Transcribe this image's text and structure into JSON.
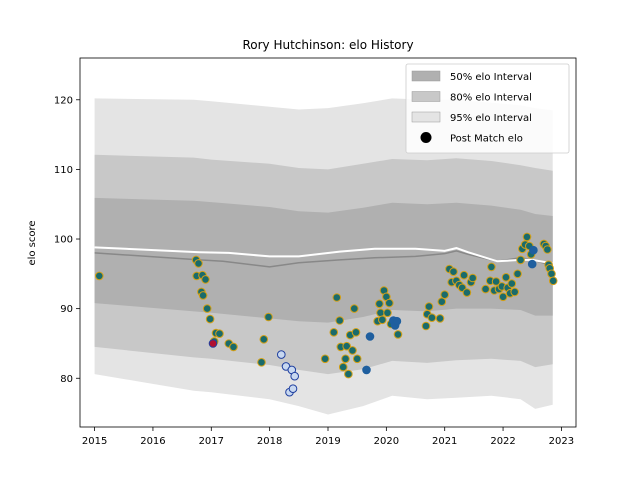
{
  "chart_data": {
    "type": "scatter",
    "title": "Rory Hutchinson: elo History",
    "xlabel": "",
    "ylabel": "elo score",
    "xlim": [
      2014.75,
      2023.25
    ],
    "ylim": [
      73,
      126
    ],
    "x_ticks": [
      2015,
      2016,
      2017,
      2018,
      2019,
      2020,
      2021,
      2022,
      2023
    ],
    "y_ticks": [
      80,
      90,
      100,
      110,
      120
    ],
    "grid": false,
    "legend_position": "top-right",
    "legend": [
      {
        "label": "50% elo Interval",
        "kind": "band",
        "color": "#b0b0b0"
      },
      {
        "label": "80% elo Interval",
        "kind": "band",
        "color": "#c8c8c8"
      },
      {
        "label": "95% elo Interval",
        "kind": "band",
        "color": "#e4e4e4"
      },
      {
        "label": "Post Match elo",
        "kind": "marker",
        "color": "#000000"
      }
    ],
    "colors": {
      "band_50": "#b0b0b0",
      "band_80": "#c8c8c8",
      "band_95": "#e4e4e4",
      "median_line": "#888888",
      "mean_line": "#ffffff",
      "win_fill": "#1a6b6b",
      "win_edge": "#d4a017",
      "loss_fill": "#1f5f9f",
      "loss_edge": "#1f5f9f",
      "open_fill": "#c8d8f0",
      "open_edge": "#1f3f9f",
      "red_fill": "#b01030",
      "red_edge": "#1f3f9f"
    },
    "intervals": [
      {
        "x": 2015.0,
        "lo95": 80.6,
        "lo80": 84.5,
        "lo50": 90.8,
        "hi50": 105.9,
        "hi80": 112.1,
        "hi95": 120.2
      },
      {
        "x": 2016.7,
        "lo95": 78.2,
        "lo80": 83.0,
        "lo50": 89.6,
        "hi50": 105.5,
        "hi80": 111.7,
        "hi95": 120.0
      },
      {
        "x": 2017.0,
        "lo95": 78.0,
        "lo80": 82.8,
        "lo50": 89.4,
        "hi50": 105.3,
        "hi80": 111.4,
        "hi95": 119.8
      },
      {
        "x": 2018.0,
        "lo95": 77.0,
        "lo80": 81.9,
        "lo50": 88.6,
        "hi50": 104.6,
        "hi80": 110.8,
        "hi95": 119.0
      },
      {
        "x": 2018.5,
        "lo95": 76.0,
        "lo80": 81.2,
        "lo50": 88.2,
        "hi50": 104.0,
        "hi80": 110.2,
        "hi95": 118.6
      },
      {
        "x": 2019.0,
        "lo95": 74.8,
        "lo80": 80.6,
        "lo50": 88.0,
        "hi50": 103.8,
        "hi80": 110.0,
        "hi95": 118.8
      },
      {
        "x": 2019.6,
        "lo95": 76.0,
        "lo80": 81.3,
        "lo50": 88.8,
        "hi50": 104.5,
        "hi80": 110.8,
        "hi95": 119.5
      },
      {
        "x": 2020.1,
        "lo95": 77.5,
        "lo80": 82.5,
        "lo50": 89.8,
        "hi50": 105.2,
        "hi80": 111.5,
        "hi95": 120.2
      },
      {
        "x": 2020.7,
        "lo95": 77.0,
        "lo80": 82.2,
        "lo50": 89.6,
        "hi50": 105.0,
        "hi80": 111.3,
        "hi95": 120.0
      },
      {
        "x": 2021.2,
        "lo95": 77.2,
        "lo80": 82.6,
        "lo50": 90.0,
        "hi50": 105.2,
        "hi80": 111.6,
        "hi95": 120.0
      },
      {
        "x": 2021.8,
        "lo95": 77.5,
        "lo80": 82.8,
        "lo50": 90.0,
        "hi50": 104.8,
        "hi80": 111.2,
        "hi95": 119.6
      },
      {
        "x": 2022.3,
        "lo95": 77.0,
        "lo80": 82.5,
        "lo50": 89.8,
        "hi50": 104.2,
        "hi80": 110.6,
        "hi95": 119.2
      },
      {
        "x": 2022.55,
        "lo95": 75.6,
        "lo80": 81.6,
        "lo50": 89.0,
        "hi50": 103.6,
        "hi80": 110.2,
        "hi95": 118.8
      },
      {
        "x": 2022.85,
        "lo95": 76.2,
        "lo80": 82.0,
        "lo50": 89.0,
        "hi50": 103.3,
        "hi80": 109.8,
        "hi95": 118.5
      }
    ],
    "median_line": [
      {
        "x": 2015.0,
        "y": 98.0
      },
      {
        "x": 2016.8,
        "y": 97.0
      },
      {
        "x": 2017.2,
        "y": 96.8
      },
      {
        "x": 2018.0,
        "y": 96.0
      },
      {
        "x": 2018.5,
        "y": 96.6
      },
      {
        "x": 2019.2,
        "y": 97.0
      },
      {
        "x": 2019.8,
        "y": 97.3
      },
      {
        "x": 2020.5,
        "y": 97.5
      },
      {
        "x": 2021.0,
        "y": 97.9
      },
      {
        "x": 2021.2,
        "y": 98.3
      },
      {
        "x": 2021.4,
        "y": 97.8
      },
      {
        "x": 2021.9,
        "y": 96.8
      },
      {
        "x": 2022.3,
        "y": 97.3
      },
      {
        "x": 2022.5,
        "y": 97.0
      },
      {
        "x": 2022.85,
        "y": 96.2
      }
    ],
    "mean_line": [
      {
        "x": 2015.0,
        "y": 98.8
      },
      {
        "x": 2016.8,
        "y": 98.1
      },
      {
        "x": 2017.3,
        "y": 98.0
      },
      {
        "x": 2018.0,
        "y": 97.5
      },
      {
        "x": 2018.5,
        "y": 97.5
      },
      {
        "x": 2019.2,
        "y": 98.2
      },
      {
        "x": 2019.8,
        "y": 98.6
      },
      {
        "x": 2020.5,
        "y": 98.6
      },
      {
        "x": 2021.0,
        "y": 98.3
      },
      {
        "x": 2021.2,
        "y": 98.7
      },
      {
        "x": 2021.4,
        "y": 98.1
      },
      {
        "x": 2021.9,
        "y": 96.8
      },
      {
        "x": 2022.3,
        "y": 97.0
      },
      {
        "x": 2022.5,
        "y": 97.0
      },
      {
        "x": 2022.85,
        "y": 96.5
      }
    ],
    "series": [
      {
        "name": "Post Match elo",
        "points": [
          {
            "x": 2015.08,
            "y": 94.7,
            "style": "win"
          },
          {
            "x": 2016.74,
            "y": 97.0,
            "style": "win"
          },
          {
            "x": 2016.78,
            "y": 96.5,
            "style": "win"
          },
          {
            "x": 2016.75,
            "y": 94.7,
            "style": "win"
          },
          {
            "x": 2016.85,
            "y": 94.8,
            "style": "win"
          },
          {
            "x": 2016.9,
            "y": 94.2,
            "style": "win"
          },
          {
            "x": 2016.83,
            "y": 92.4,
            "style": "win"
          },
          {
            "x": 2016.86,
            "y": 91.9,
            "style": "win"
          },
          {
            "x": 2016.93,
            "y": 90.0,
            "style": "win"
          },
          {
            "x": 2016.98,
            "y": 88.5,
            "style": "win"
          },
          {
            "x": 2017.08,
            "y": 86.5,
            "style": "win"
          },
          {
            "x": 2017.14,
            "y": 86.4,
            "style": "win"
          },
          {
            "x": 2017.05,
            "y": 85.3,
            "style": "win"
          },
          {
            "x": 2017.03,
            "y": 85.0,
            "style": "red"
          },
          {
            "x": 2017.3,
            "y": 85.0,
            "style": "win"
          },
          {
            "x": 2017.38,
            "y": 84.5,
            "style": "win"
          },
          {
            "x": 2017.86,
            "y": 82.3,
            "style": "win"
          },
          {
            "x": 2017.9,
            "y": 85.6,
            "style": "win"
          },
          {
            "x": 2017.98,
            "y": 88.8,
            "style": "win"
          },
          {
            "x": 2018.2,
            "y": 83.4,
            "style": "open"
          },
          {
            "x": 2018.28,
            "y": 81.7,
            "style": "open"
          },
          {
            "x": 2018.38,
            "y": 81.2,
            "style": "open"
          },
          {
            "x": 2018.43,
            "y": 80.3,
            "style": "open"
          },
          {
            "x": 2018.34,
            "y": 78.0,
            "style": "open"
          },
          {
            "x": 2018.4,
            "y": 78.5,
            "style": "open"
          },
          {
            "x": 2018.95,
            "y": 82.8,
            "style": "win"
          },
          {
            "x": 2019.1,
            "y": 86.6,
            "style": "win"
          },
          {
            "x": 2019.15,
            "y": 91.6,
            "style": "win"
          },
          {
            "x": 2019.2,
            "y": 88.3,
            "style": "win"
          },
          {
            "x": 2019.22,
            "y": 84.5,
            "style": "win"
          },
          {
            "x": 2019.26,
            "y": 81.6,
            "style": "win"
          },
          {
            "x": 2019.3,
            "y": 82.8,
            "style": "win"
          },
          {
            "x": 2019.32,
            "y": 84.6,
            "style": "win"
          },
          {
            "x": 2019.35,
            "y": 80.6,
            "style": "win"
          },
          {
            "x": 2019.38,
            "y": 86.2,
            "style": "win"
          },
          {
            "x": 2019.42,
            "y": 84.0,
            "style": "win"
          },
          {
            "x": 2019.45,
            "y": 90.0,
            "style": "win"
          },
          {
            "x": 2019.48,
            "y": 86.6,
            "style": "win"
          },
          {
            "x": 2019.5,
            "y": 82.8,
            "style": "win"
          },
          {
            "x": 2019.66,
            "y": 81.2,
            "style": "loss"
          },
          {
            "x": 2019.72,
            "y": 86.0,
            "style": "loss"
          },
          {
            "x": 2019.85,
            "y": 88.2,
            "style": "win"
          },
          {
            "x": 2019.88,
            "y": 90.7,
            "style": "win"
          },
          {
            "x": 2019.9,
            "y": 89.4,
            "style": "win"
          },
          {
            "x": 2019.93,
            "y": 88.4,
            "style": "win"
          },
          {
            "x": 2019.96,
            "y": 92.6,
            "style": "win"
          },
          {
            "x": 2020.0,
            "y": 91.7,
            "style": "win"
          },
          {
            "x": 2020.02,
            "y": 89.4,
            "style": "win"
          },
          {
            "x": 2020.05,
            "y": 90.8,
            "style": "win"
          },
          {
            "x": 2020.08,
            "y": 87.8,
            "style": "win"
          },
          {
            "x": 2020.12,
            "y": 88.3,
            "style": "loss"
          },
          {
            "x": 2020.15,
            "y": 87.6,
            "style": "loss"
          },
          {
            "x": 2020.18,
            "y": 88.2,
            "style": "loss"
          },
          {
            "x": 2020.2,
            "y": 86.3,
            "style": "win"
          },
          {
            "x": 2020.68,
            "y": 87.5,
            "style": "win"
          },
          {
            "x": 2020.7,
            "y": 89.2,
            "style": "win"
          },
          {
            "x": 2020.73,
            "y": 90.3,
            "style": "win"
          },
          {
            "x": 2020.78,
            "y": 88.7,
            "style": "win"
          },
          {
            "x": 2020.92,
            "y": 88.6,
            "style": "win"
          },
          {
            "x": 2020.95,
            "y": 91.0,
            "style": "win"
          },
          {
            "x": 2021.0,
            "y": 92.0,
            "style": "win"
          },
          {
            "x": 2021.08,
            "y": 95.7,
            "style": "win"
          },
          {
            "x": 2021.12,
            "y": 93.8,
            "style": "win"
          },
          {
            "x": 2021.15,
            "y": 95.3,
            "style": "win"
          },
          {
            "x": 2021.2,
            "y": 94.0,
            "style": "win"
          },
          {
            "x": 2021.25,
            "y": 93.4,
            "style": "win"
          },
          {
            "x": 2021.3,
            "y": 93.0,
            "style": "win"
          },
          {
            "x": 2021.33,
            "y": 94.8,
            "style": "win"
          },
          {
            "x": 2021.38,
            "y": 92.3,
            "style": "win"
          },
          {
            "x": 2021.45,
            "y": 93.8,
            "style": "win"
          },
          {
            "x": 2021.48,
            "y": 94.4,
            "style": "win"
          },
          {
            "x": 2021.7,
            "y": 92.8,
            "style": "win"
          },
          {
            "x": 2021.78,
            "y": 94.0,
            "style": "win"
          },
          {
            "x": 2021.8,
            "y": 96.0,
            "style": "win"
          },
          {
            "x": 2021.85,
            "y": 92.6,
            "style": "win"
          },
          {
            "x": 2021.88,
            "y": 93.9,
            "style": "win"
          },
          {
            "x": 2021.93,
            "y": 92.8,
            "style": "win"
          },
          {
            "x": 2021.98,
            "y": 93.2,
            "style": "win"
          },
          {
            "x": 2022.0,
            "y": 91.7,
            "style": "win"
          },
          {
            "x": 2022.05,
            "y": 94.5,
            "style": "win"
          },
          {
            "x": 2022.08,
            "y": 93.0,
            "style": "win"
          },
          {
            "x": 2022.12,
            "y": 92.2,
            "style": "win"
          },
          {
            "x": 2022.15,
            "y": 93.6,
            "style": "win"
          },
          {
            "x": 2022.2,
            "y": 92.4,
            "style": "win"
          },
          {
            "x": 2022.25,
            "y": 95.0,
            "style": "win"
          },
          {
            "x": 2022.3,
            "y": 97.0,
            "style": "win"
          },
          {
            "x": 2022.33,
            "y": 98.6,
            "style": "win"
          },
          {
            "x": 2022.38,
            "y": 99.2,
            "style": "win"
          },
          {
            "x": 2022.41,
            "y": 100.3,
            "style": "win"
          },
          {
            "x": 2022.45,
            "y": 99.0,
            "style": "win"
          },
          {
            "x": 2022.48,
            "y": 97.8,
            "style": "win"
          },
          {
            "x": 2022.52,
            "y": 98.4,
            "style": "loss"
          },
          {
            "x": 2022.5,
            "y": 96.4,
            "style": "loss"
          },
          {
            "x": 2022.7,
            "y": 99.3,
            "style": "win"
          },
          {
            "x": 2022.73,
            "y": 99.0,
            "style": "win"
          },
          {
            "x": 2022.76,
            "y": 98.5,
            "style": "win"
          },
          {
            "x": 2022.78,
            "y": 96.3,
            "style": "win"
          },
          {
            "x": 2022.8,
            "y": 95.8,
            "style": "win"
          },
          {
            "x": 2022.83,
            "y": 95.0,
            "style": "win"
          },
          {
            "x": 2022.86,
            "y": 94.0,
            "style": "win"
          }
        ]
      }
    ]
  }
}
